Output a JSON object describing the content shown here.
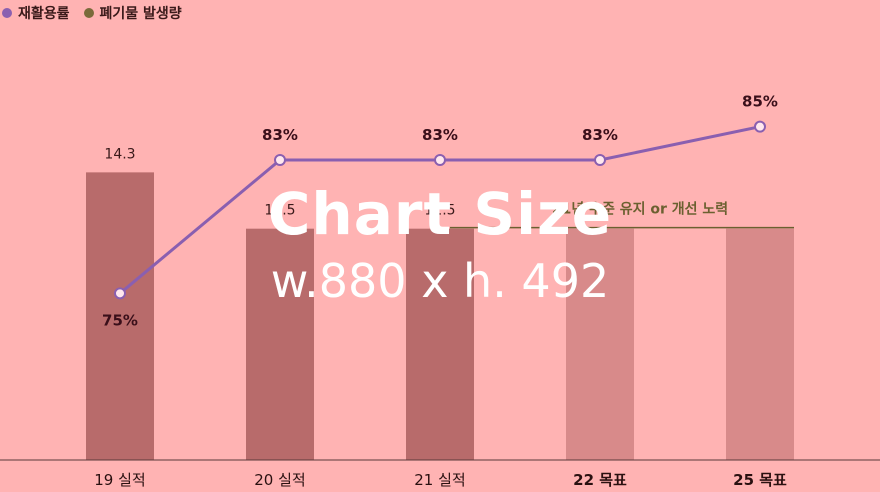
{
  "chart_data": {
    "type": "bar",
    "categories": [
      "19 실적",
      "20 실적",
      "21 실적",
      "22 목표",
      "25 목표"
    ],
    "bold_categories": [
      false,
      false,
      false,
      true,
      true
    ],
    "series": [
      {
        "name": "폐기물 발생량",
        "kind": "bar",
        "values": [
          14.3,
          11.5,
          11.5,
          11.5,
          11.5
        ],
        "labels": [
          "14.3",
          "11.5",
          "11.5",
          "",
          ""
        ],
        "colors": [
          "#b86b6b",
          "#b86b6b",
          "#b86b6b",
          "#d88a8a",
          "#d88a8a"
        ]
      },
      {
        "name": "재활용률",
        "kind": "line",
        "values": [
          75,
          83,
          83,
          83,
          85
        ],
        "labels": [
          "75%",
          "83%",
          "83%",
          "83%",
          "85%"
        ]
      }
    ],
    "bar_ylim": [
      0,
      17.5
    ],
    "line_ylim": [
      65,
      89
    ],
    "annotation": "21년 수준 유지 or 개선 노력"
  },
  "legend": {
    "items": [
      {
        "label": "재활용률",
        "color": "#8a5fb0"
      },
      {
        "label": "폐기물 발생량",
        "color": "#7a6a3a"
      }
    ]
  },
  "watermark": {
    "title": "Chart Size",
    "size_text": "w.880 x h. 492"
  },
  "colors": {
    "background": "#ffb3b3",
    "line": "#8a5fb0",
    "annotation": "#6b6030",
    "axis": "#5a3a3a"
  }
}
